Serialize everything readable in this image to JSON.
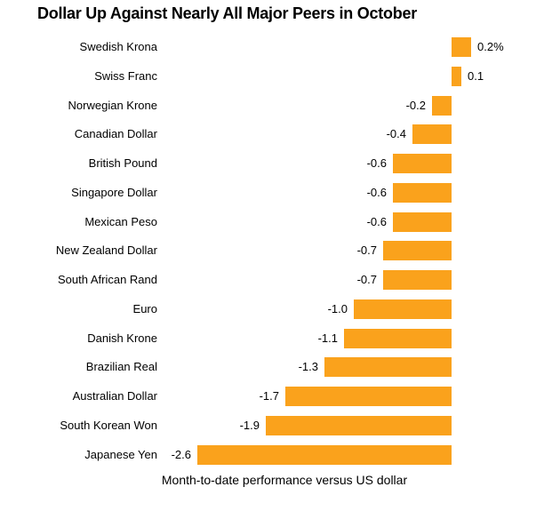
{
  "title": "Dollar Up Against Nearly All Major Peers in October",
  "footer": "Month-to-date performance versus US dollar",
  "colors": {
    "bar": "#FAA21C",
    "text": "#000000",
    "background": "#FFFFFF"
  },
  "chart_data": {
    "type": "bar",
    "orientation": "horizontal",
    "title": "Dollar Up Against Nearly All Major Peers in October",
    "xlabel": "Month-to-date performance versus US dollar",
    "unit": "%",
    "categories": [
      "Swedish Krona",
      "Swiss Franc",
      "Norwegian Krone",
      "Canadian Dollar",
      "British Pound",
      "Singapore Dollar",
      "Mexican Peso",
      "New Zealand Dollar",
      "South African Rand",
      "Euro",
      "Danish Krone",
      "Brazilian Real",
      "Australian Dollar",
      "South Korean Won",
      "Japanese Yen"
    ],
    "values": [
      0.2,
      0.1,
      -0.2,
      -0.4,
      -0.6,
      -0.6,
      -0.6,
      -0.7,
      -0.7,
      -1.0,
      -1.1,
      -1.3,
      -1.7,
      -1.9,
      -2.6
    ],
    "value_labels": [
      "0.2%",
      "0.1",
      "-0.2",
      "-0.4",
      "-0.6",
      "-0.6",
      "-0.6",
      "-0.7",
      "-0.7",
      "-1.0",
      "-1.1",
      "-1.3",
      "-1.7",
      "-1.9",
      "-2.6"
    ],
    "xlim": [
      -2.8,
      0.5
    ],
    "baseline": 0,
    "grid": false,
    "legend": "none"
  }
}
